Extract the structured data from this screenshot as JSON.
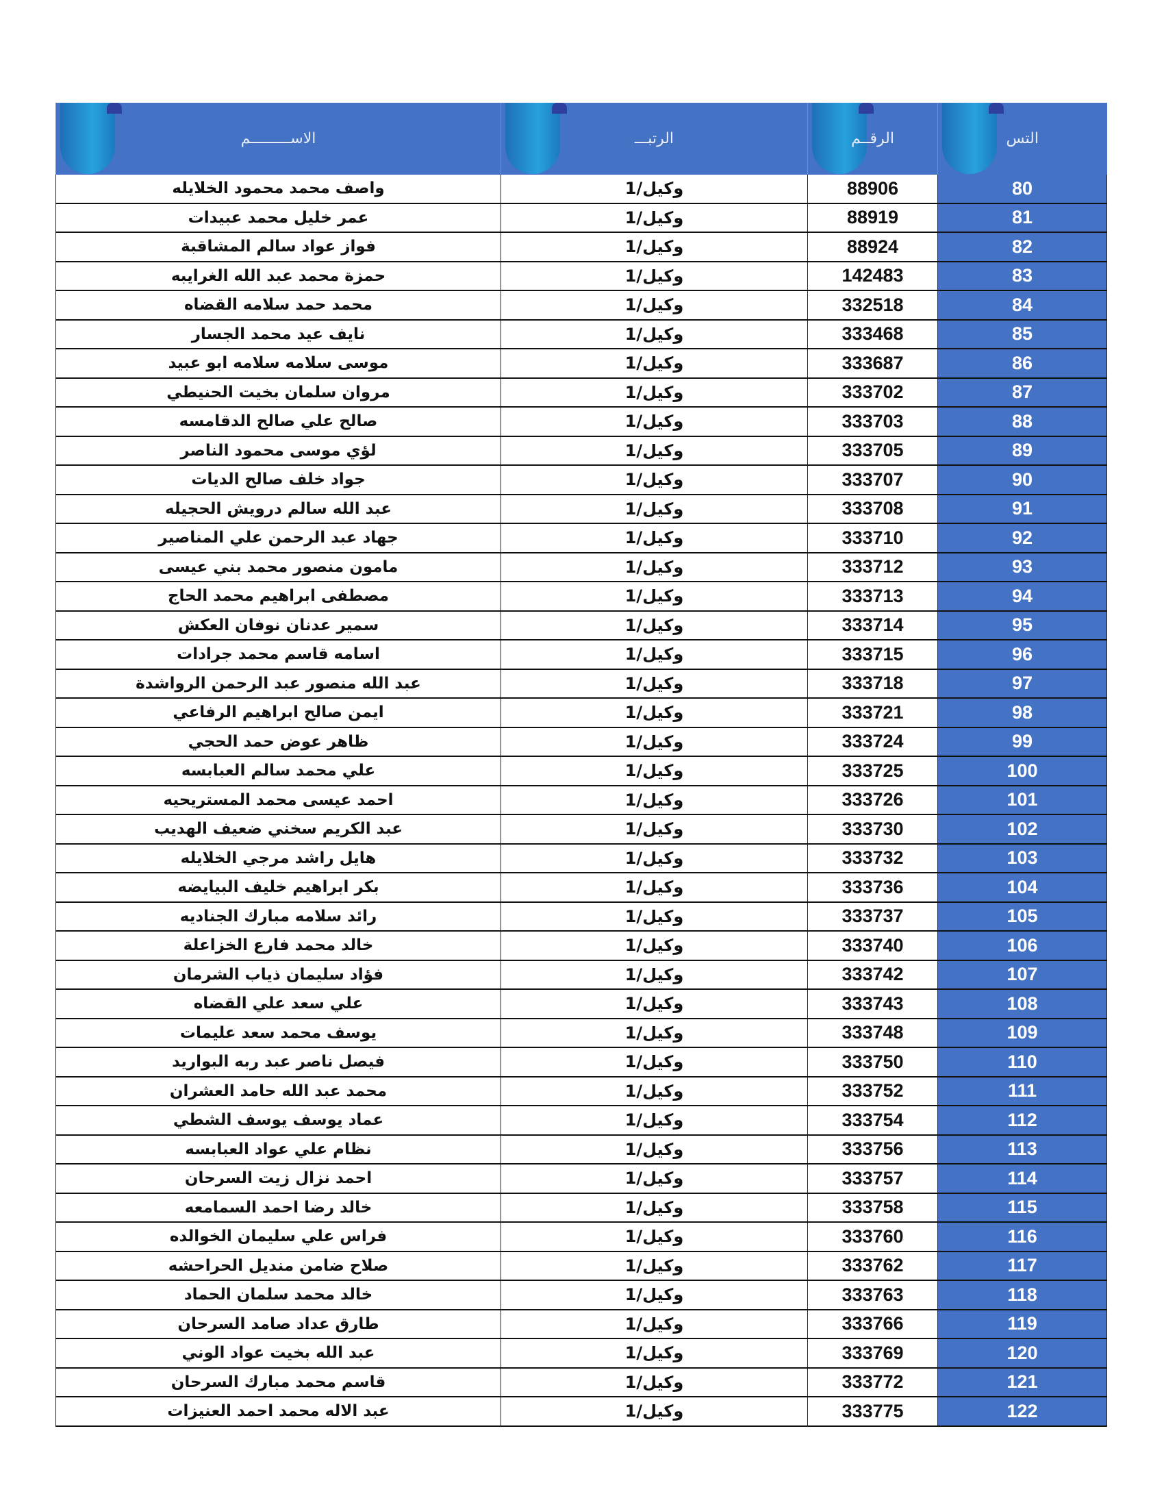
{
  "header": {
    "name": "الاســـــــــم",
    "rank": "الرتبـــ",
    "number": "الرقــم",
    "serial": "التس"
  },
  "colors": {
    "header_bg": "#4472c4",
    "serial_bg": "#4472c4"
  },
  "rows": [
    [
      "80",
      "88906",
      "وكيل/1",
      "واصف محمد محمود الخلايله"
    ],
    [
      "81",
      "88919",
      "وكيل/1",
      "عمر خليل محمد عبيدات"
    ],
    [
      "82",
      "88924",
      "وكيل/1",
      "فواز عواد سالم المشاقبة"
    ],
    [
      "83",
      "142483",
      "وكيل/1",
      "حمزة محمد عبد الله الغرايبه"
    ],
    [
      "84",
      "332518",
      "وكيل/1",
      "محمد حمد سلامه القضاه"
    ],
    [
      "85",
      "333468",
      "وكيل/1",
      "نايف عيد محمد الجسار"
    ],
    [
      "86",
      "333687",
      "وكيل/1",
      "موسى سلامه سلامه ابو عبيد"
    ],
    [
      "87",
      "333702",
      "وكيل/1",
      "مروان سلمان بخيت الحنيطي"
    ],
    [
      "88",
      "333703",
      "وكيل/1",
      "صالح علي صالح الدقامسه"
    ],
    [
      "89",
      "333705",
      "وكيل/1",
      "لؤي موسى محمود الناصر"
    ],
    [
      "90",
      "333707",
      "وكيل/1",
      "جواد خلف صالح الديات"
    ],
    [
      "91",
      "333708",
      "وكيل/1",
      "عبد الله سالم درويش الحجيله"
    ],
    [
      "92",
      "333710",
      "وكيل/1",
      "جهاد عبد الرحمن علي المناصير"
    ],
    [
      "93",
      "333712",
      "وكيل/1",
      "مامون منصور محمد بني عيسى"
    ],
    [
      "94",
      "333713",
      "وكيل/1",
      "مصطفى ابراهيم محمد الحاج"
    ],
    [
      "95",
      "333714",
      "وكيل/1",
      "سمير عدنان نوفان العكش"
    ],
    [
      "96",
      "333715",
      "وكيل/1",
      "اسامه قاسم محمد جرادات"
    ],
    [
      "97",
      "333718",
      "وكيل/1",
      "عبد الله منصور عبد الرحمن الرواشدة"
    ],
    [
      "98",
      "333721",
      "وكيل/1",
      "ايمن صالح ابراهيم الرفاعي"
    ],
    [
      "99",
      "333724",
      "وكيل/1",
      "ظاهر عوض حمد الحجي"
    ],
    [
      "100",
      "333725",
      "وكيل/1",
      "علي محمد سالم العبابسه"
    ],
    [
      "101",
      "333726",
      "وكيل/1",
      "احمد عيسى محمد المستريحيه"
    ],
    [
      "102",
      "333730",
      "وكيل/1",
      "عبد الكريم سخني ضعيف الهديب"
    ],
    [
      "103",
      "333732",
      "وكيل/1",
      "هايل راشد مرجي الخلايله"
    ],
    [
      "104",
      "333736",
      "وكيل/1",
      "بكر ابراهيم خليف البيايضه"
    ],
    [
      "105",
      "333737",
      "وكيل/1",
      "رائد سلامه مبارك الجناديه"
    ],
    [
      "106",
      "333740",
      "وكيل/1",
      "خالد محمد فارع الخزاعلة"
    ],
    [
      "107",
      "333742",
      "وكيل/1",
      "فؤاد سليمان ذياب الشرمان"
    ],
    [
      "108",
      "333743",
      "وكيل/1",
      "علي سعد علي القضاه"
    ],
    [
      "109",
      "333748",
      "وكيل/1",
      "يوسف محمد سعد عليمات"
    ],
    [
      "110",
      "333750",
      "وكيل/1",
      "فيصل ناصر عبد ربه البواريد"
    ],
    [
      "111",
      "333752",
      "وكيل/1",
      "محمد عبد الله حامد العشران"
    ],
    [
      "112",
      "333754",
      "وكيل/1",
      "عماد يوسف يوسف الشطي"
    ],
    [
      "113",
      "333756",
      "وكيل/1",
      "نظام علي عواد العبابسه"
    ],
    [
      "114",
      "333757",
      "وكيل/1",
      "احمد نزال زيت السرحان"
    ],
    [
      "115",
      "333758",
      "وكيل/1",
      "خالد رضا احمد السمامعه"
    ],
    [
      "116",
      "333760",
      "وكيل/1",
      "فراس علي سليمان الخوالده"
    ],
    [
      "117",
      "333762",
      "وكيل/1",
      "صلاح ضامن منديل الحراحشه"
    ],
    [
      "118",
      "333763",
      "وكيل/1",
      "خالد محمد سلمان الحماد"
    ],
    [
      "119",
      "333766",
      "وكيل/1",
      "طارق عداد صامد السرحان"
    ],
    [
      "120",
      "333769",
      "وكيل/1",
      "عبد الله بخيت عواد الوني"
    ],
    [
      "121",
      "333772",
      "وكيل/1",
      "قاسم محمد مبارك السرحان"
    ],
    [
      "122",
      "333775",
      "وكيل/1",
      "عبد الاله محمد احمد العنيزات"
    ]
  ]
}
